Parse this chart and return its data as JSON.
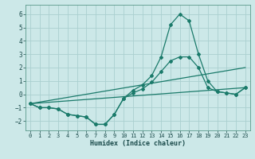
{
  "xlabel": "Humidex (Indice chaleur)",
  "background_color": "#cce8e8",
  "grid_color": "#aad0d0",
  "line_color": "#1a7a6a",
  "xlim": [
    -0.5,
    23.5
  ],
  "ylim": [
    -2.7,
    6.7
  ],
  "xticks": [
    0,
    1,
    2,
    3,
    4,
    5,
    6,
    7,
    8,
    9,
    10,
    11,
    12,
    13,
    14,
    15,
    16,
    17,
    18,
    19,
    20,
    21,
    22,
    23
  ],
  "yticks": [
    -2,
    -1,
    0,
    1,
    2,
    3,
    4,
    5,
    6
  ],
  "curve1_x": [
    0,
    1,
    2,
    3,
    4,
    5,
    6,
    7,
    8,
    9,
    10,
    11,
    12,
    13,
    14,
    15,
    16,
    17,
    18,
    19,
    20,
    21,
    22,
    23
  ],
  "curve1_y": [
    -0.7,
    -1.0,
    -1.0,
    -1.1,
    -1.5,
    -1.6,
    -1.7,
    -2.25,
    -2.25,
    -1.5,
    -0.3,
    0.3,
    0.7,
    1.4,
    2.8,
    5.2,
    6.0,
    5.5,
    3.0,
    1.0,
    0.2,
    0.1,
    0.0,
    0.5
  ],
  "curve2_x": [
    0,
    1,
    2,
    3,
    4,
    5,
    6,
    7,
    8,
    9,
    10,
    11,
    12,
    13,
    14,
    15,
    16,
    17,
    18,
    19,
    20,
    21,
    22,
    23
  ],
  "curve2_y": [
    -0.7,
    -1.0,
    -1.0,
    -1.1,
    -1.5,
    -1.6,
    -1.7,
    -2.25,
    -2.25,
    -1.5,
    -0.3,
    0.1,
    0.4,
    0.9,
    1.7,
    2.5,
    2.8,
    2.8,
    2.0,
    0.5,
    0.2,
    0.1,
    0.0,
    0.5
  ],
  "line3_x": [
    0,
    23
  ],
  "line3_y": [
    -0.7,
    2.0
  ],
  "line4_x": [
    0,
    23
  ],
  "line4_y": [
    -0.7,
    0.5
  ]
}
